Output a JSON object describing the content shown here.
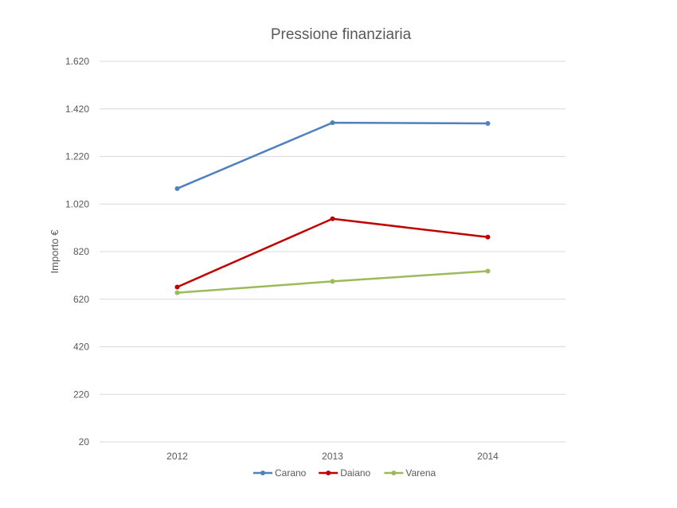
{
  "chart_data": {
    "type": "line",
    "title": "Pressione finanziaria",
    "xlabel": "",
    "ylabel": "Importo €",
    "categories": [
      "2012",
      "2013",
      "2014"
    ],
    "ylim": [
      20,
      1620
    ],
    "yticks": [
      20,
      220,
      420,
      620,
      820,
      1020,
      1220,
      1420,
      1620
    ],
    "ytick_labels": [
      "20",
      "220",
      "420",
      "620",
      "820",
      "1.020",
      "1.220",
      "1.420",
      "1.620"
    ],
    "grid": true,
    "legend_position": "bottom",
    "series": [
      {
        "name": "Carano",
        "color": "#4f81bd",
        "values": [
          1085,
          1362,
          1359
        ]
      },
      {
        "name": "Daiano",
        "color": "#c00000",
        "values": [
          671,
          958,
          881
        ]
      },
      {
        "name": "Varena",
        "color": "#9bbb59",
        "values": [
          647,
          695,
          738
        ]
      }
    ]
  }
}
